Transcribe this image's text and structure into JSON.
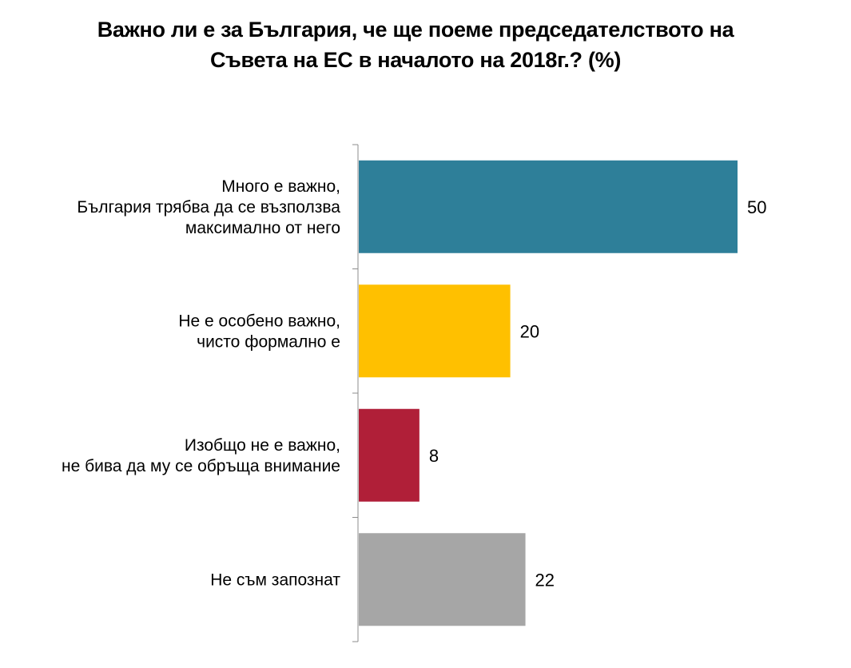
{
  "chart_data": {
    "type": "bar",
    "orientation": "horizontal",
    "title": [
      "Важно ли е за България, че ще поеме председателството на",
      "Съвета на ЕС в началото на 2018г.? (%)"
    ],
    "categories": [
      [
        "Много е важно,",
        "България трябва да се възползва",
        "максимално от него"
      ],
      [
        "Не е особено важно,",
        "чисто формално е"
      ],
      [
        "Изобщо не е важно,",
        "не бива да му се обръща внимание"
      ],
      [
        "Не съм запознат"
      ]
    ],
    "values": [
      50,
      20,
      8,
      22
    ],
    "value_labels": [
      "50",
      "20",
      "8",
      "22"
    ],
    "colors": [
      "#2e7f99",
      "#ffc000",
      "#b01f38",
      "#a6a6a6"
    ],
    "xlim": [
      0,
      60
    ],
    "grid": false,
    "legend": "none"
  }
}
